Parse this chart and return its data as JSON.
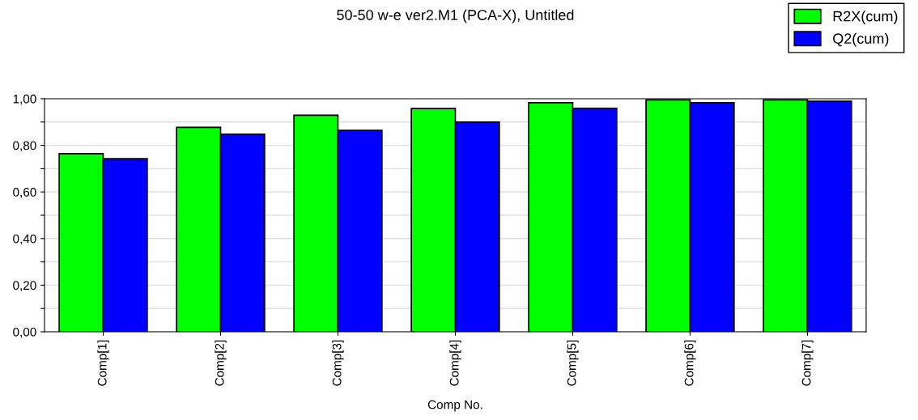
{
  "chart_data": {
    "type": "bar",
    "title": "50-50 w-e ver2.M1 (PCA-X), Untitled",
    "xlabel": "Comp No.",
    "categories": [
      "Comp[1]",
      "Comp[2]",
      "Comp[3]",
      "Comp[4]",
      "Comp[5]",
      "Comp[6]",
      "Comp[7]"
    ],
    "series": [
      {
        "name": "R2X(cum)",
        "color": "#00ff00",
        "values": [
          0.764,
          0.877,
          0.929,
          0.958,
          0.983,
          0.995,
          0.995
        ]
      },
      {
        "name": "Q2(cum)",
        "color": "#0000ff",
        "values": [
          0.743,
          0.848,
          0.864,
          0.9,
          0.959,
          0.983,
          0.989
        ]
      }
    ],
    "ylim": [
      0,
      1
    ],
    "yticks": [
      {
        "value": 0,
        "label": "0,00"
      },
      {
        "value": 0.1,
        "label": null
      },
      {
        "value": 0.2,
        "label": "0,20"
      },
      {
        "value": 0.3,
        "label": null
      },
      {
        "value": 0.4,
        "label": "0,40"
      },
      {
        "value": 0.5,
        "label": null
      },
      {
        "value": 0.6,
        "label": "0,60"
      },
      {
        "value": 0.7,
        "label": null
      },
      {
        "value": 0.8,
        "label": "0,80"
      },
      {
        "value": 0.9,
        "label": null
      },
      {
        "value": 1,
        "label": "1,00"
      }
    ],
    "grid": "y",
    "legend": "top right"
  }
}
